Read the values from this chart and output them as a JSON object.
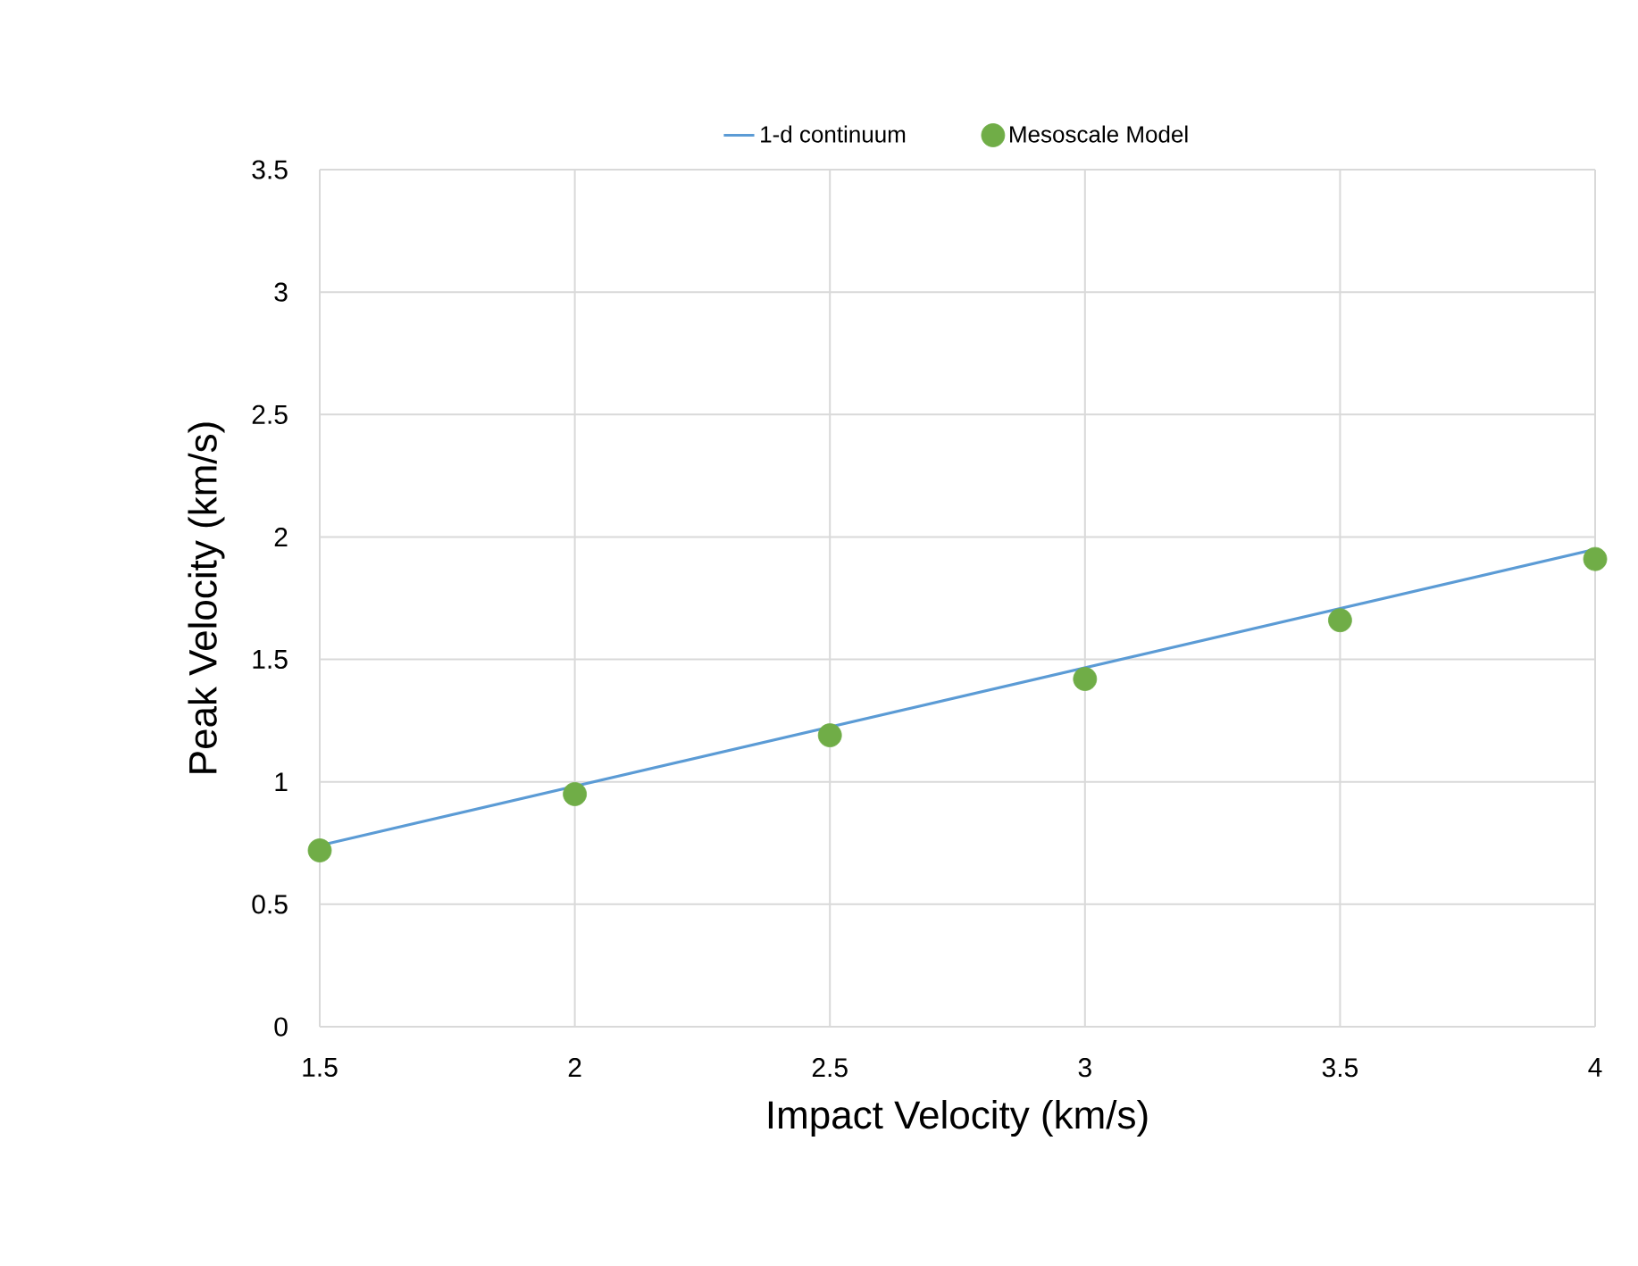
{
  "chart_data": {
    "type": "scatter",
    "xlabel": "Impact Velocity (km/s)",
    "ylabel": "Peak Velocity (km/s)",
    "xlim": [
      1.5,
      4
    ],
    "ylim": [
      0,
      3.5
    ],
    "xticks": [
      1.5,
      2,
      2.5,
      3,
      3.5,
      4
    ],
    "yticks": [
      0,
      0.5,
      1,
      1.5,
      2,
      2.5,
      3,
      3.5
    ],
    "grid": true,
    "legend": "top",
    "series": [
      {
        "name": "1-d continuum",
        "type": "line",
        "color": "#5b9bd5",
        "x": [
          1.5,
          4
        ],
        "values": [
          0.74,
          1.95
        ]
      },
      {
        "name": "Mesoscale Model",
        "color": "#70ad47",
        "marker": "circle",
        "x": [
          1.5,
          2,
          2.5,
          3,
          3.5,
          4
        ],
        "values": [
          0.72,
          0.95,
          1.19,
          1.42,
          1.66,
          1.91
        ]
      }
    ]
  }
}
